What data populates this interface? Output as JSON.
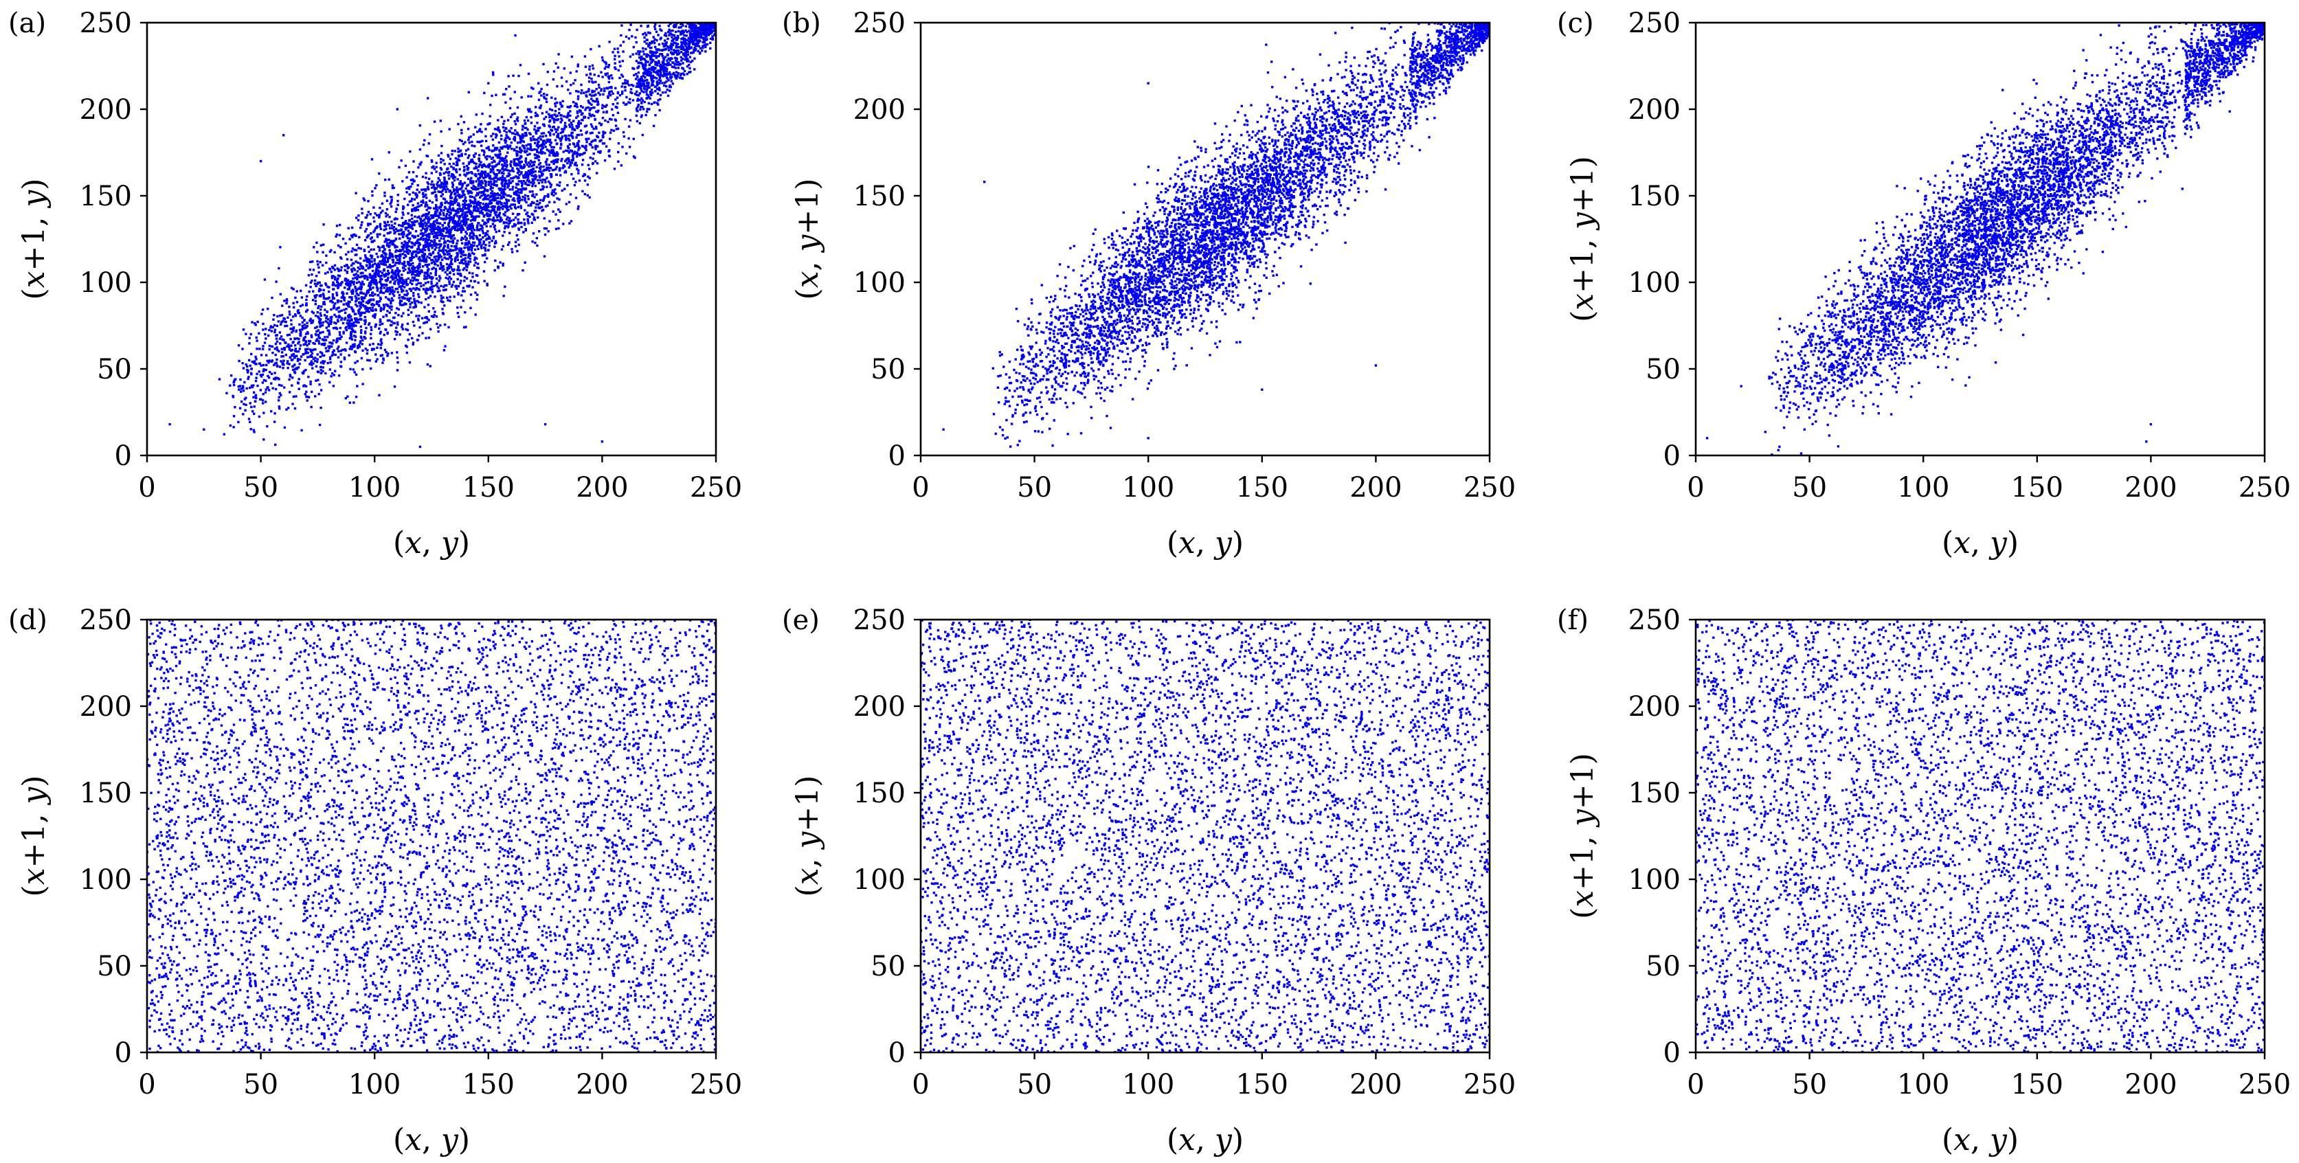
{
  "figure": {
    "point_color": "#0000ee",
    "axis_color": "#000000"
  },
  "chart_data": [
    {
      "panel_label": "(a)",
      "type": "scatter",
      "xlabel": "(x, y)",
      "ylabel": "(x+1, y)",
      "xlim": [
        0,
        250
      ],
      "ylim": [
        0,
        250
      ],
      "xticks": [
        0,
        50,
        100,
        150,
        200,
        250
      ],
      "yticks": [
        0,
        50,
        100,
        150,
        200,
        250
      ],
      "distribution": "correlated",
      "point_count": 6000,
      "sample_points": [
        [
          10,
          18
        ],
        [
          25,
          15
        ],
        [
          50,
          170
        ],
        [
          60,
          185
        ],
        [
          110,
          200
        ],
        [
          150,
          215
        ],
        [
          200,
          8
        ],
        [
          175,
          18
        ],
        [
          120,
          5
        ],
        [
          240,
          245
        ],
        [
          248,
          250
        ],
        [
          130,
          130
        ],
        [
          90,
          90
        ],
        [
          180,
          180
        ]
      ],
      "series": [
        {
          "color": "#0000ee"
        }
      ]
    },
    {
      "panel_label": "(b)",
      "type": "scatter",
      "xlabel": "(x, y)",
      "ylabel": "(x, y+1)",
      "xlim": [
        0,
        250
      ],
      "ylim": [
        0,
        250
      ],
      "xticks": [
        0,
        50,
        100,
        150,
        200,
        250
      ],
      "yticks": [
        0,
        50,
        100,
        150,
        200,
        250
      ],
      "distribution": "correlated",
      "point_count": 6000,
      "sample_points": [
        [
          10,
          15
        ],
        [
          28,
          158
        ],
        [
          100,
          215
        ],
        [
          200,
          52
        ],
        [
          100,
          10
        ],
        [
          150,
          38
        ],
        [
          245,
          248
        ],
        [
          120,
          120
        ],
        [
          80,
          80
        ],
        [
          175,
          175
        ]
      ],
      "series": [
        {
          "color": "#0000ee"
        }
      ]
    },
    {
      "panel_label": "(c)",
      "type": "scatter",
      "xlabel": "(x, y)",
      "ylabel": "(x+1, y+1)",
      "xlim": [
        0,
        250
      ],
      "ylim": [
        0,
        250
      ],
      "xticks": [
        0,
        50,
        100,
        150,
        200,
        250
      ],
      "yticks": [
        0,
        50,
        100,
        150,
        200,
        250
      ],
      "distribution": "correlated",
      "point_count": 6000,
      "sample_points": [
        [
          5,
          10
        ],
        [
          20,
          40
        ],
        [
          200,
          18
        ],
        [
          198,
          8
        ],
        [
          240,
          245
        ],
        [
          130,
          130
        ],
        [
          90,
          90
        ],
        [
          180,
          180
        ]
      ],
      "series": [
        {
          "color": "#0000ee"
        }
      ]
    },
    {
      "panel_label": "(d)",
      "type": "scatter",
      "xlabel": "(x, y)",
      "ylabel": "(x+1, y)",
      "xlim": [
        0,
        250
      ],
      "ylim": [
        0,
        250
      ],
      "xticks": [
        0,
        50,
        100,
        150,
        200,
        250
      ],
      "yticks": [
        0,
        50,
        100,
        150,
        200,
        250
      ],
      "distribution": "uniform",
      "point_count": 6000,
      "sample_points": [],
      "series": [
        {
          "color": "#0000ee"
        }
      ]
    },
    {
      "panel_label": "(e)",
      "type": "scatter",
      "xlabel": "(x, y)",
      "ylabel": "(x, y+1)",
      "xlim": [
        0,
        250
      ],
      "ylim": [
        0,
        250
      ],
      "xticks": [
        0,
        50,
        100,
        150,
        200,
        250
      ],
      "yticks": [
        0,
        50,
        100,
        150,
        200,
        250
      ],
      "distribution": "uniform",
      "point_count": 6000,
      "sample_points": [],
      "series": [
        {
          "color": "#0000ee"
        }
      ]
    },
    {
      "panel_label": "(f)",
      "type": "scatter",
      "xlabel": "(x, y)",
      "ylabel": "(x+1, y+1)",
      "xlim": [
        0,
        250
      ],
      "ylim": [
        0,
        250
      ],
      "xticks": [
        0,
        50,
        100,
        150,
        200,
        250
      ],
      "yticks": [
        0,
        50,
        100,
        150,
        200,
        250
      ],
      "distribution": "uniform",
      "point_count": 6000,
      "sample_points": [],
      "series": [
        {
          "color": "#0000ee"
        }
      ]
    }
  ]
}
